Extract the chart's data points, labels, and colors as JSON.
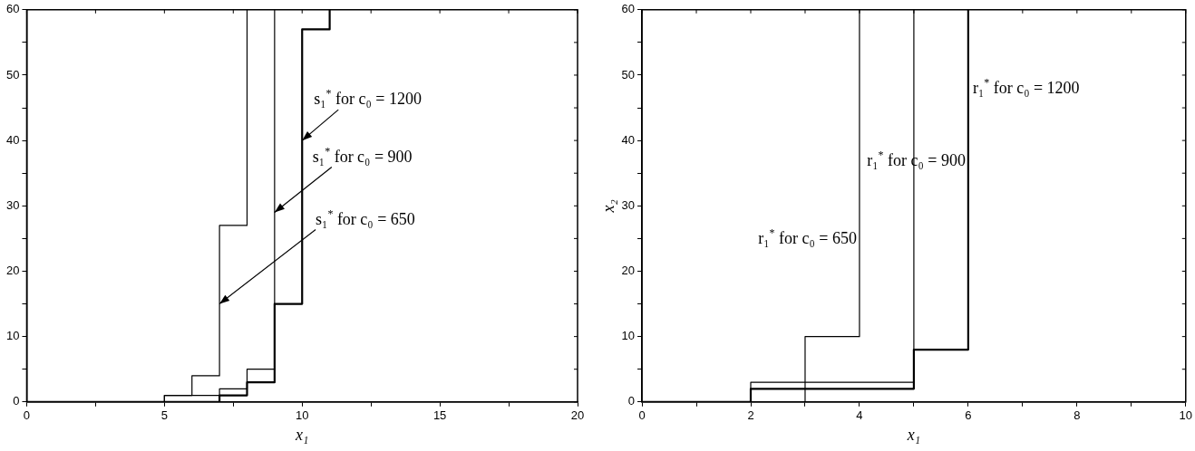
{
  "chart_data": [
    {
      "type": "step",
      "xlabel": "x₁",
      "xlim": [
        0,
        20
      ],
      "ylim": [
        0,
        60
      ],
      "xticks": [
        0,
        {
          "value": 2.5,
          "label": null
        },
        5,
        {
          "value": 7.5,
          "label": null
        },
        10,
        {
          "value": 12.5,
          "label": null
        },
        15,
        {
          "value": 17.5,
          "label": null
        },
        20
      ],
      "yticks": [
        0,
        {
          "value": 5,
          "label": null
        },
        10,
        {
          "value": 15,
          "label": null
        },
        20,
        {
          "value": 25,
          "label": null
        },
        30,
        {
          "value": 35,
          "label": null
        },
        40,
        {
          "value": 45,
          "label": null
        },
        50,
        {
          "value": 55,
          "label": null
        },
        60
      ],
      "series": [
        {
          "color": "#000000",
          "x": [
            0,
            5,
            6,
            7,
            8
          ],
          "values": [
            0,
            1,
            4,
            27,
            60
          ]
        },
        {
          "color": "#000000",
          "x": [
            0,
            5,
            7,
            8,
            9
          ],
          "values": [
            0,
            1,
            2,
            5,
            60
          ]
        },
        {
          "color": "#000000",
          "x": [
            0,
            7,
            8,
            9,
            10,
            11
          ],
          "values": [
            0,
            1,
            3,
            15,
            57,
            60
          ]
        }
      ],
      "annotations": [
        {
          "text": "s₁$^{*}$ for c₀ = 1200",
          "x": 10,
          "y": 40
        },
        {
          "text": "s₁$^{*}$ for c₀ = 900",
          "x": 9,
          "y": 29
        },
        {
          "text": "s₁$^{*}$ for c₀ = 650",
          "x": 7,
          "y": 15
        }
      ],
      "legend": false
    },
    {
      "type": "step",
      "xlabel": "x₁",
      "ylabel": "x₂",
      "xlim": [
        0,
        10
      ],
      "ylim": [
        0,
        60
      ],
      "xticks": [
        0,
        {
          "value": 1,
          "label": null
        },
        2,
        {
          "value": 3,
          "label": null
        },
        4,
        {
          "value": 5,
          "label": null
        },
        6,
        {
          "value": 7,
          "label": null
        },
        8,
        {
          "value": 9,
          "label": null
        },
        10
      ],
      "yticks": [
        0,
        {
          "value": 5,
          "label": null
        },
        10,
        {
          "value": 15,
          "label": null
        },
        20,
        {
          "value": 25,
          "label": null
        },
        30,
        {
          "value": 35,
          "label": null
        },
        40,
        {
          "value": 45,
          "label": null
        },
        50,
        {
          "value": 55,
          "label": null
        },
        60
      ],
      "series": [
        {
          "color": "#000000",
          "x": [
            0,
            3,
            4
          ],
          "values": [
            0,
            10,
            60
          ]
        },
        {
          "color": "#000000",
          "x": [
            0,
            2,
            5
          ],
          "values": [
            0,
            3,
            60
          ]
        },
        {
          "color": "#000000",
          "x": [
            0,
            2,
            5,
            6
          ],
          "values": [
            0,
            2,
            8,
            60
          ]
        }
      ],
      "annotations": [
        {
          "text": "r₁$^{*}$ for c₀ = 650",
          "x": 4,
          "y": 25
        },
        {
          "text": "r₁$^{*}$ for c₀ = 900",
          "x": 6,
          "y": 37
        },
        {
          "text": "r₁$^{*}$ for c₀ = 1200",
          "x": 6,
          "y": 48
        }
      ],
      "legend": false
    }
  ]
}
